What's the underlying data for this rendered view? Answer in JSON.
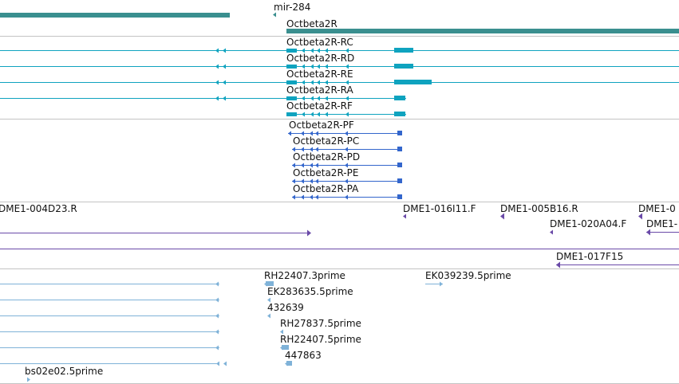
{
  "colors": {
    "gene": "#3a8f8f",
    "transcript": "#0fa3bf",
    "protein": "#3366cc",
    "clone": "#6a4aa8",
    "est": "#7fb2d8",
    "separator": "#c4c4c4"
  },
  "tracks": {
    "genes": {
      "labels": {
        "mir284": "mir-284",
        "octbeta2r": "Octbeta2R"
      }
    },
    "transcripts": {
      "labels": [
        "Octbeta2R-RC",
        "Octbeta2R-RD",
        "Octbeta2R-RE",
        "Octbeta2R-RA",
        "Octbeta2R-RF"
      ]
    },
    "proteins": {
      "labels": [
        "Octbeta2R-PF",
        "Octbeta2R-PC",
        "Octbeta2R-PD",
        "Octbeta2R-PE",
        "Octbeta2R-PA"
      ]
    },
    "clones": {
      "labels": {
        "c1": "DME1-004D23.R",
        "c2": "DME1-016I11.F",
        "c3": "DME1-005B16.R",
        "c4": "DME1-0",
        "c5": "DME1-020A04.F",
        "c6": "DME1-",
        "c7": "DME1-017F15"
      }
    },
    "ests": {
      "labels": {
        "e1": "RH22407.3prime",
        "e2": "EK039239.5prime",
        "e3": "EK283635.5prime",
        "e4": "432639",
        "e5": "RH27837.5prime",
        "e6": "RH22407.5prime",
        "e7": "447863",
        "e8": "bs02e02.5prime"
      }
    }
  }
}
